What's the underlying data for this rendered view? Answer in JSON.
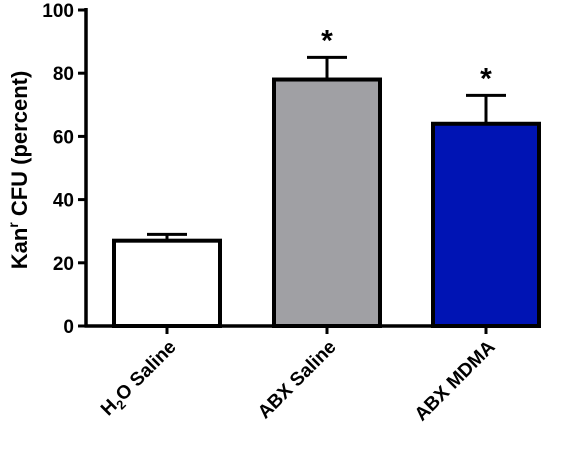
{
  "chart_data": {
    "type": "bar",
    "categories": [
      "H2O Saline",
      "ABX Saline",
      "ABX MDMA"
    ],
    "category_parts": [
      {
        "pre": "H",
        "sub": "2",
        "post": "O Saline"
      },
      {
        "pre": "ABX Saline",
        "sub": "",
        "post": ""
      },
      {
        "pre": "ABX MDMA",
        "sub": "",
        "post": ""
      }
    ],
    "values": [
      27,
      78,
      64
    ],
    "errors": [
      2,
      7,
      9
    ],
    "significance": [
      "",
      "*",
      "*"
    ],
    "bar_colors": [
      "#ffffff",
      "#a0a0a4",
      "#0014b4"
    ],
    "bar_edge_color": "#000000",
    "ylabel": {
      "main": "Kan",
      "sup": "r",
      "rest": " CFU (percent)"
    },
    "ylim": [
      0,
      100
    ],
    "yticks": [
      0,
      20,
      40,
      60,
      80,
      100
    ],
    "grid": false
  }
}
